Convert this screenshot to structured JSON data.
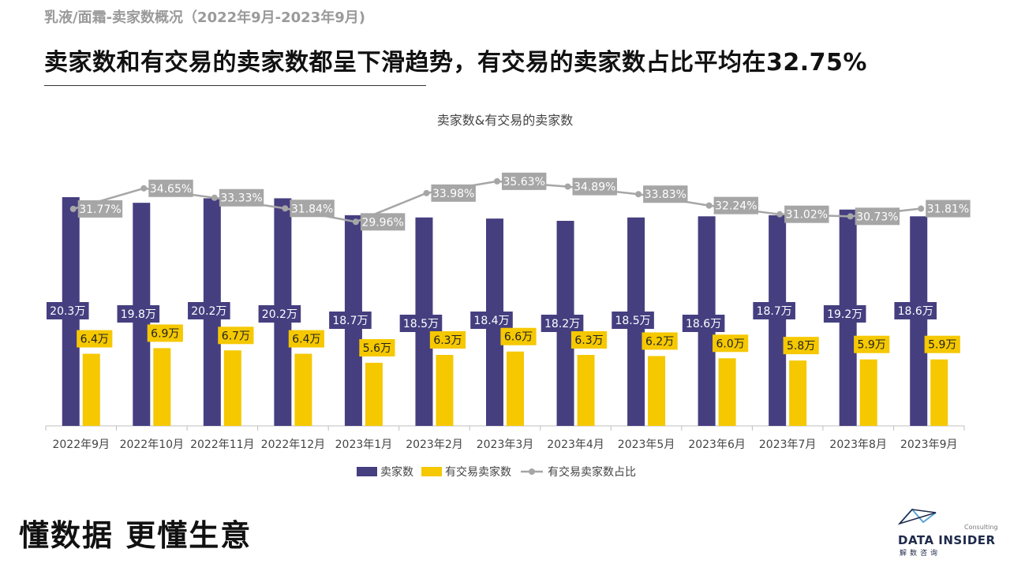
{
  "header": {
    "subtitle": "乳液/面霜-卖家数概况（2022年9月-2023年9月)",
    "headline": "卖家数和有交易的卖家数都呈下滑趋势，有交易的卖家数占比平均在32.75%"
  },
  "footer": {
    "slogan": "懂数据 更懂生意",
    "brand": "DATA INSIDER",
    "brand_cn": "解数咨询",
    "consulting": "Consulting"
  },
  "colors": {
    "seller_bar": "#453f80",
    "trading_bar": "#f5c800",
    "ratio_line": "#a6a6a6",
    "ratio_label_bg": "#a6a6a6"
  },
  "chart_data": {
    "type": "bar",
    "title": "卖家数&有交易的卖家数",
    "categories": [
      "2022年9月",
      "2022年10月",
      "2022年11月",
      "2022年12月",
      "2023年1月",
      "2023年2月",
      "2023年3月",
      "2023年4月",
      "2023年5月",
      "2023年6月",
      "2023年7月",
      "2023年8月",
      "2023年9月"
    ],
    "series": [
      {
        "name": "卖家数",
        "kind": "bar",
        "unit": "万",
        "values": [
          20.3,
          19.8,
          20.2,
          20.2,
          18.7,
          18.5,
          18.4,
          18.2,
          18.5,
          18.6,
          18.7,
          19.2,
          18.6
        ],
        "labels": [
          "20.3万",
          "19.8万",
          "20.2万",
          "20.2万",
          "18.7万",
          "18.5万",
          "18.4万",
          "18.2万",
          "18.5万",
          "18.6万",
          "18.7万",
          "19.2万",
          "18.6万"
        ]
      },
      {
        "name": "有交易卖家数",
        "kind": "bar",
        "unit": "万",
        "values": [
          6.4,
          6.9,
          6.7,
          6.4,
          5.6,
          6.3,
          6.6,
          6.3,
          6.2,
          6.0,
          5.8,
          5.9,
          5.9
        ],
        "labels": [
          "6.4万",
          "6.9万",
          "6.7万",
          "6.4万",
          "5.6万",
          "6.3万",
          "6.6万",
          "6.3万",
          "6.2万",
          "6.0万",
          "5.8万",
          "5.9万",
          "5.9万"
        ]
      },
      {
        "name": "有交易卖家数占比",
        "kind": "line",
        "unit": "%",
        "values": [
          31.77,
          34.65,
          33.33,
          31.84,
          29.96,
          33.98,
          35.63,
          34.89,
          33.83,
          32.24,
          31.02,
          30.73,
          31.81
        ],
        "labels": [
          "31.77%",
          "34.65%",
          "33.33%",
          "31.84%",
          "29.96%",
          "33.98%",
          "35.63%",
          "34.89%",
          "33.83%",
          "32.24%",
          "31.02%",
          "30.73%",
          "31.81%"
        ]
      }
    ],
    "legend_position": "bottom",
    "grid": false
  }
}
